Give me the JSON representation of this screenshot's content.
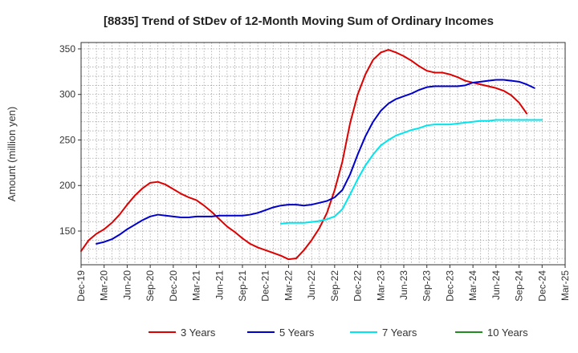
{
  "chart_data": {
    "type": "line",
    "title": "[8835]  Trend of StDev of 12-Month Moving Sum of Ordinary Incomes",
    "xlabel": "",
    "ylabel": "Amount (million yen)",
    "ylim": [
      113,
      357
    ],
    "yticks": [
      150,
      200,
      250,
      300,
      350
    ],
    "x_tick_labels": [
      "Dec-19",
      "Mar-20",
      "Jun-20",
      "Sep-20",
      "Dec-20",
      "Mar-21",
      "Jun-21",
      "Sep-21",
      "Dec-21",
      "Mar-22",
      "Jun-22",
      "Sep-22",
      "Dec-22",
      "Mar-23",
      "Jun-23",
      "Sep-23",
      "Dec-23",
      "Mar-24",
      "Jun-24",
      "Sep-24",
      "Dec-24",
      "Mar-25"
    ],
    "x_range_months": [
      0,
      63
    ],
    "grid": true,
    "legend_position": "bottom",
    "series": [
      {
        "name": "3 Years",
        "color": "#dd0000",
        "start_month": 0,
        "values": [
          128,
          140,
          147,
          152,
          159,
          168,
          179,
          189,
          197,
          203,
          204,
          201,
          196,
          191,
          187,
          184,
          178,
          171,
          163,
          155,
          149,
          142,
          136,
          132,
          129,
          126,
          123,
          119,
          120,
          129,
          140,
          153,
          170,
          195,
          226,
          268,
          300,
          322,
          338,
          346,
          349,
          346,
          342,
          337,
          331,
          326,
          324,
          324,
          322,
          319,
          315,
          313,
          311,
          309,
          307,
          304,
          299,
          291,
          279
        ]
      },
      {
        "name": "5 Years",
        "color": "#0000cc",
        "start_month": 2,
        "values": [
          136,
          138,
          141,
          146,
          152,
          157,
          162,
          166,
          168,
          167,
          166,
          165,
          165,
          166,
          166,
          166,
          167,
          167,
          167,
          167,
          168,
          170,
          173,
          176,
          178,
          179,
          179,
          178,
          179,
          181,
          183,
          187,
          195,
          212,
          234,
          254,
          270,
          282,
          290,
          295,
          298,
          301,
          305,
          308,
          309,
          309,
          309,
          309,
          310,
          313,
          314,
          315,
          316,
          316,
          315,
          314,
          311,
          307
        ]
      },
      {
        "name": "7 Years",
        "color": "#00e5ee",
        "start_month": 26,
        "values": [
          158,
          159,
          159,
          159,
          160,
          161,
          163,
          166,
          174,
          190,
          207,
          222,
          234,
          244,
          250,
          255,
          258,
          261,
          263,
          266,
          267,
          267,
          267,
          268,
          269,
          270,
          271,
          271,
          272,
          272,
          272,
          272,
          272,
          272,
          272
        ]
      },
      {
        "name": "10 Years",
        "color": "#228b22",
        "start_month": 0,
        "values": []
      }
    ]
  }
}
